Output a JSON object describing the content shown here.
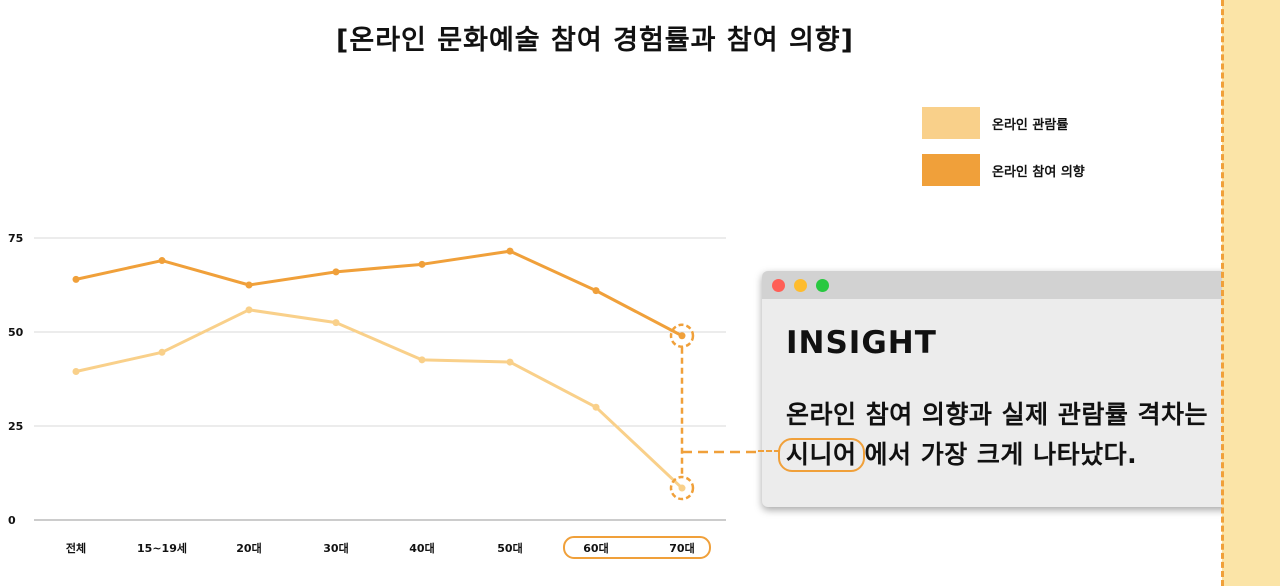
{
  "title": "[온라인 문화예술 참여 경험률과 참여 의향]",
  "chart_data": {
    "type": "line",
    "categories": [
      "전체",
      "15~19세",
      "20대",
      "30대",
      "40대",
      "50대",
      "60대",
      "70대"
    ],
    "series": [
      {
        "name": "온라인 관람률",
        "color": "#f9d08a",
        "values": [
          39.5,
          44.6,
          55.9,
          52.5,
          42.6,
          42.0,
          30.0,
          8.5
        ]
      },
      {
        "name": "온라인 참여 의향",
        "color": "#f0a03a",
        "values": [
          64.0,
          69.0,
          62.5,
          66.0,
          68.0,
          71.5,
          61.0,
          49.0
        ]
      }
    ],
    "y_ticks": [
      0,
      25,
      50,
      75
    ],
    "ylim": [
      0,
      75
    ],
    "grid": true,
    "legend_position": "top-right",
    "highlighted_categories": [
      "60대",
      "70대"
    ]
  },
  "insight": {
    "heading": "INSIGHT",
    "line1": "온라인 참여 의향과 실제 관람률 격차는",
    "line2_highlight": "시니어",
    "line2_rest": "에서 가장 크게 나타났다."
  }
}
